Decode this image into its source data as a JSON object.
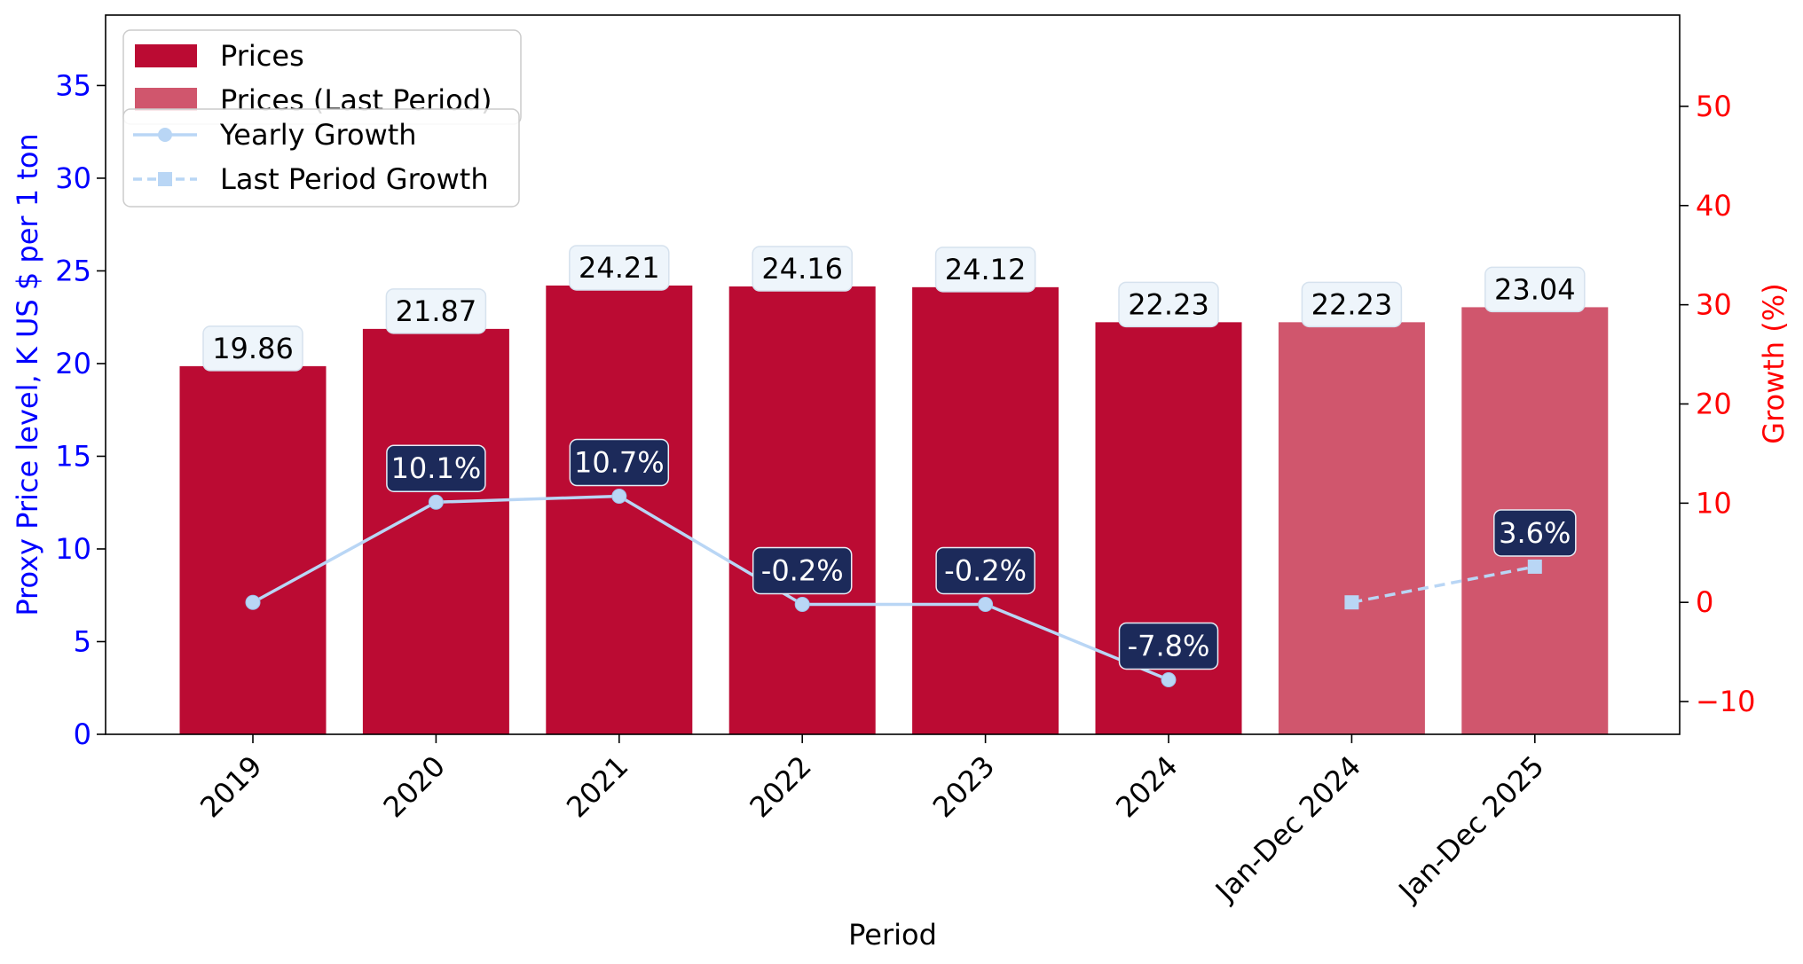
{
  "chart_data": {
    "type": "bar",
    "xlabel": "Period",
    "ylabel": "Proxy Price level, K US $ per 1 ton",
    "y2label": "Growth (%)",
    "categories": [
      "2019",
      "2020",
      "2021",
      "2022",
      "2023",
      "2024",
      "Jan-Dec 2024",
      "Jan-Dec 2025"
    ],
    "ylim": [
      0,
      38.8
    ],
    "y2lim": [
      -13.3,
      59.2
    ],
    "yticks": [
      0,
      5,
      10,
      15,
      20,
      25,
      30,
      35
    ],
    "y2ticks": [
      -10,
      0,
      10,
      20,
      30,
      40,
      50
    ],
    "y2ticklabels": [
      "−10",
      "0",
      "10",
      "20",
      "30",
      "40",
      "50"
    ],
    "grid": false,
    "series": [
      {
        "name": "Prices",
        "kind": "bar",
        "color": "#bb0b33",
        "values": [
          19.86,
          21.87,
          24.21,
          24.16,
          24.12,
          22.23,
          null,
          null
        ],
        "labels": [
          "19.86",
          "21.87",
          "24.21",
          "24.16",
          "24.12",
          "22.23",
          "",
          ""
        ]
      },
      {
        "name": "Prices (Last Period)",
        "kind": "bar",
        "color": "#d0566d",
        "values": [
          null,
          null,
          null,
          null,
          null,
          null,
          22.23,
          23.04
        ],
        "labels": [
          "",
          "",
          "",
          "",
          "",
          "",
          "22.23",
          "23.04"
        ]
      },
      {
        "name": "Yearly Growth",
        "kind": "line",
        "axis": "right",
        "color": "#b9d6f5",
        "marker": "circle",
        "values": [
          0,
          10.1,
          10.7,
          -0.2,
          -0.2,
          -7.8,
          null,
          null
        ],
        "labels": [
          "",
          "10.1%",
          "10.7%",
          "-0.2%",
          "-0.2%",
          "-7.8%",
          "",
          ""
        ]
      },
      {
        "name": "Last Period Growth",
        "kind": "line",
        "axis": "right",
        "dashed": true,
        "color": "#b9d6f5",
        "marker": "square",
        "values": [
          null,
          null,
          null,
          null,
          null,
          null,
          0,
          3.6
        ],
        "labels": [
          "",
          "",
          "",
          "",
          "",
          "",
          "",
          "3.6%"
        ]
      }
    ],
    "legend_placement": "top-left",
    "colors": {
      "left_axis": "#0000ff",
      "right_axis": "#ff0000",
      "bar_label_bg": "#eef5fb",
      "growth_label_bg": "#1c2a5a"
    }
  }
}
